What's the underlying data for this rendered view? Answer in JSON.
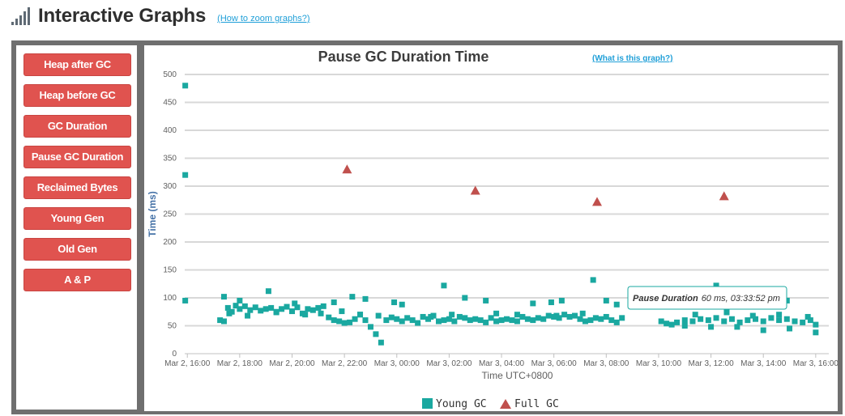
{
  "header": {
    "title": "Interactive Graphs",
    "zoom_link": "(How to zoom graphs?)"
  },
  "sidebar": {
    "buttons": [
      {
        "label": "Heap after GC"
      },
      {
        "label": "Heap before GC"
      },
      {
        "label": "GC Duration"
      },
      {
        "label": "Pause GC Duration"
      },
      {
        "label": "Reclaimed Bytes"
      },
      {
        "label": "Young Gen"
      },
      {
        "label": "Old Gen"
      },
      {
        "label": "A & P"
      }
    ]
  },
  "chart_link": "(What is this graph?)",
  "tooltip": {
    "label": "Pause Duration",
    "value": "60 ms, 03:33:52 pm"
  },
  "colors": {
    "young": "#1aa8a0",
    "full": "#c0504d",
    "button": "#e0534f",
    "frame": "#6f6f6f"
  },
  "chart_data": {
    "type": "scatter",
    "title": "Pause GC Duration Time",
    "xlabel": "Time UTC+0800",
    "ylabel": "Time (ms)",
    "ylim": [
      0,
      500
    ],
    "yticks": [
      0,
      50,
      100,
      150,
      200,
      250,
      300,
      350,
      400,
      450,
      500
    ],
    "xlim": [
      15.9,
      40.5
    ],
    "xticks": [
      {
        "x": 16,
        "label": "Mar 2, 16:00"
      },
      {
        "x": 18,
        "label": "Mar 2, 18:00"
      },
      {
        "x": 20,
        "label": "Mar 2, 20:00"
      },
      {
        "x": 22,
        "label": "Mar 2, 22:00"
      },
      {
        "x": 24,
        "label": "Mar 3, 00:00"
      },
      {
        "x": 26,
        "label": "Mar 3, 02:00"
      },
      {
        "x": 28,
        "label": "Mar 3, 04:00"
      },
      {
        "x": 30,
        "label": "Mar 3, 06:00"
      },
      {
        "x": 32,
        "label": "Mar 3, 08:00"
      },
      {
        "x": 34,
        "label": "Mar 3, 10:00"
      },
      {
        "x": 36,
        "label": "Mar 3, 12:00"
      },
      {
        "x": 38,
        "label": "Mar 3, 14:00"
      },
      {
        "x": 40,
        "label": "Mar 3, 16:00"
      }
    ],
    "grid": true,
    "legend": "bottom-center",
    "series": [
      {
        "name": "Young GC",
        "marker": "square",
        "x": [
          15.92,
          15.92,
          15.92,
          17.25,
          17.4,
          17.55,
          17.7,
          17.85,
          18.0,
          18.2,
          18.4,
          18.6,
          18.8,
          19.0,
          19.2,
          19.4,
          19.6,
          19.8,
          20.0,
          20.2,
          20.4,
          20.6,
          20.8,
          21.0,
          21.2,
          21.4,
          21.6,
          21.8,
          22.0,
          22.2,
          22.4,
          22.6,
          22.8,
          23.0,
          23.2,
          23.4,
          23.6,
          23.8,
          24.0,
          24.2,
          24.4,
          24.6,
          24.8,
          25.0,
          25.2,
          25.4,
          25.6,
          25.8,
          26.0,
          26.2,
          26.4,
          26.6,
          26.8,
          27.0,
          27.2,
          27.4,
          27.6,
          27.8,
          28.0,
          28.2,
          28.4,
          28.6,
          28.8,
          29.0,
          29.2,
          29.4,
          29.6,
          29.8,
          30.0,
          30.2,
          30.4,
          30.6,
          30.8,
          31.0,
          31.2,
          31.4,
          31.6,
          31.8,
          32.0,
          32.2,
          32.4,
          32.6,
          34.1,
          34.3,
          34.5,
          34.7,
          35.0,
          35.3,
          35.6,
          35.9,
          36.2,
          36.5,
          36.8,
          37.1,
          37.4,
          37.7,
          38.0,
          38.3,
          38.6,
          38.9,
          39.2,
          39.5,
          39.8,
          40.0,
          17.4,
          18.0,
          19.1,
          20.1,
          21.6,
          22.3,
          22.8,
          23.9,
          24.2,
          25.8,
          26.6,
          27.4,
          29.2,
          29.9,
          30.3,
          31.5,
          32.0,
          32.4,
          35.7,
          36.2,
          37.8,
          38.9,
          35.0,
          36.0,
          37.0,
          38.0,
          39.0,
          40.0,
          17.6,
          18.3,
          19.4,
          20.5,
          21.1,
          21.9,
          22.6,
          23.3,
          25.3,
          26.1,
          27.8,
          28.6,
          30.1,
          31.1,
          35.4,
          36.6,
          37.6,
          38.6,
          39.7
        ],
        "y": [
          480,
          320,
          95,
          60,
          58,
          82,
          75,
          86,
          80,
          85,
          78,
          83,
          77,
          80,
          82,
          75,
          80,
          84,
          76,
          83,
          72,
          80,
          78,
          82,
          85,
          65,
          60,
          58,
          55,
          56,
          62,
          70,
          60,
          48,
          35,
          20,
          60,
          65,
          62,
          58,
          64,
          60,
          55,
          66,
          62,
          68,
          58,
          60,
          62,
          58,
          66,
          64,
          60,
          62,
          60,
          56,
          64,
          58,
          60,
          62,
          60,
          58,
          66,
          62,
          60,
          64,
          62,
          68,
          66,
          64,
          70,
          66,
          68,
          62,
          58,
          60,
          64,
          62,
          66,
          60,
          56,
          64,
          58,
          54,
          52,
          56,
          60,
          58,
          62,
          60,
          64,
          58,
          62,
          56,
          60,
          62,
          58,
          64,
          60,
          62,
          58,
          56,
          60,
          52,
          102,
          95,
          112,
          90,
          92,
          102,
          98,
          92,
          88,
          122,
          100,
          95,
          90,
          92,
          95,
          132,
          95,
          88,
          95,
          122,
          112,
          95,
          50,
          48,
          48,
          42,
          45,
          38,
          72,
          68,
          74,
          70,
          72,
          76,
          70,
          68,
          66,
          70,
          72,
          70,
          68,
          72,
          70,
          74,
          68,
          70,
          66
        ]
      },
      {
        "name": "Full GC",
        "marker": "triangle",
        "x": [
          22.1,
          27.0,
          31.65,
          36.5
        ],
        "y": [
          330,
          292,
          272,
          282
        ]
      }
    ]
  }
}
